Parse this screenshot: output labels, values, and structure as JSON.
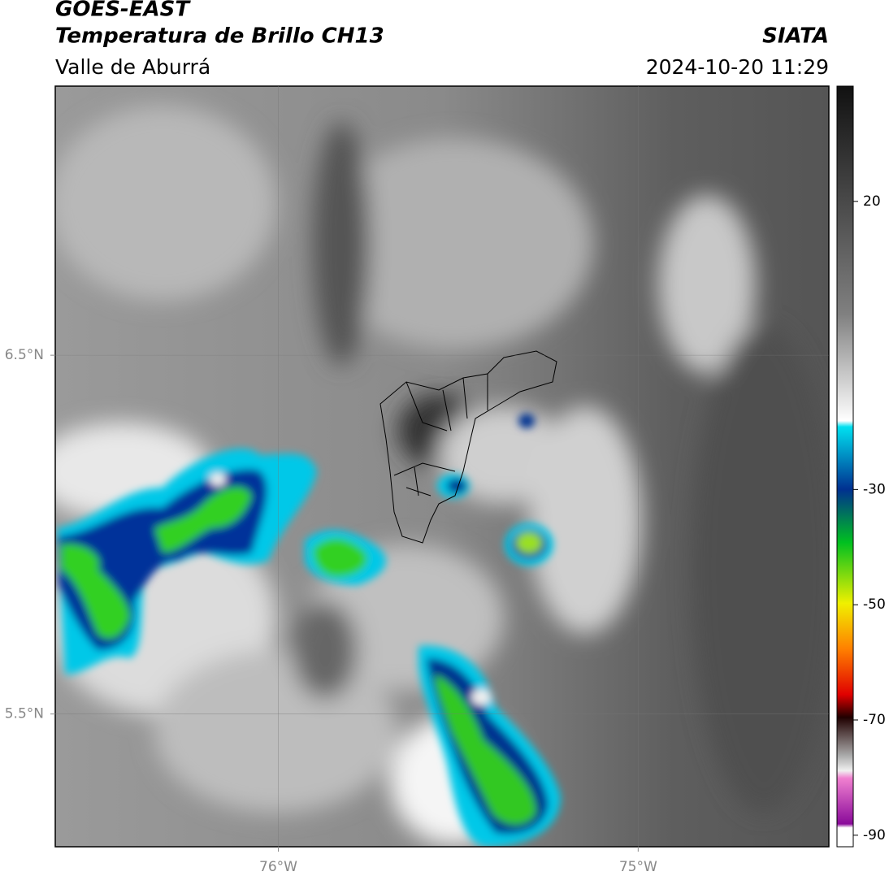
{
  "header": {
    "title": "GOES-EAST",
    "subtitle": "Temperatura de Brillo CH13",
    "region": "Valle de Aburrá",
    "source": "SIATA",
    "timestamp": "2024-10-20 11:29"
  },
  "map": {
    "xlim": [
      -76.62,
      -74.47
    ],
    "ylim": [
      5.13,
      7.25
    ],
    "xticks": [
      {
        "value": -76,
        "label": "76°W"
      },
      {
        "value": -75,
        "label": "75°W"
      }
    ],
    "yticks": [
      {
        "value": 6.5,
        "label": "6.5°N"
      },
      {
        "value": 5.5,
        "label": "5.5°N"
      }
    ],
    "grid": true
  },
  "colorbar": {
    "lim": [
      -92,
      40
    ],
    "ticks": [
      20,
      -30,
      -50,
      -70,
      -90
    ]
  }
}
